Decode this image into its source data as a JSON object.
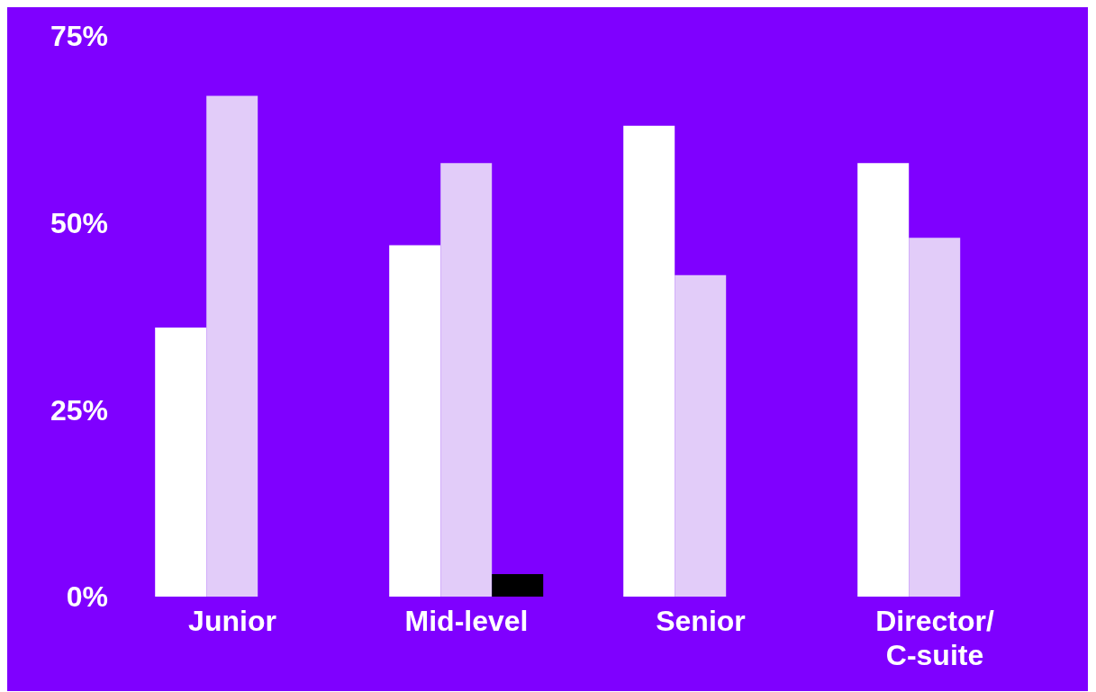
{
  "chart_data": {
    "type": "bar",
    "categories": [
      "Junior",
      "Mid-level",
      "Senior",
      "Director/ C-suite"
    ],
    "series": [
      {
        "color": "#ffffff",
        "values": [
          36,
          47,
          63,
          58
        ]
      },
      {
        "color": "#e2ccf9",
        "values": [
          67,
          58,
          43,
          48
        ]
      },
      {
        "color": "#000000",
        "values": [
          null,
          3,
          null,
          null
        ]
      }
    ],
    "ylim": [
      0,
      75
    ],
    "yticks": [
      {
        "value": 0,
        "label": "0%"
      },
      {
        "value": 25,
        "label": "25%"
      },
      {
        "value": 50,
        "label": "50%"
      },
      {
        "value": 75,
        "label": "75%"
      }
    ],
    "grid": false,
    "legend": false
  }
}
